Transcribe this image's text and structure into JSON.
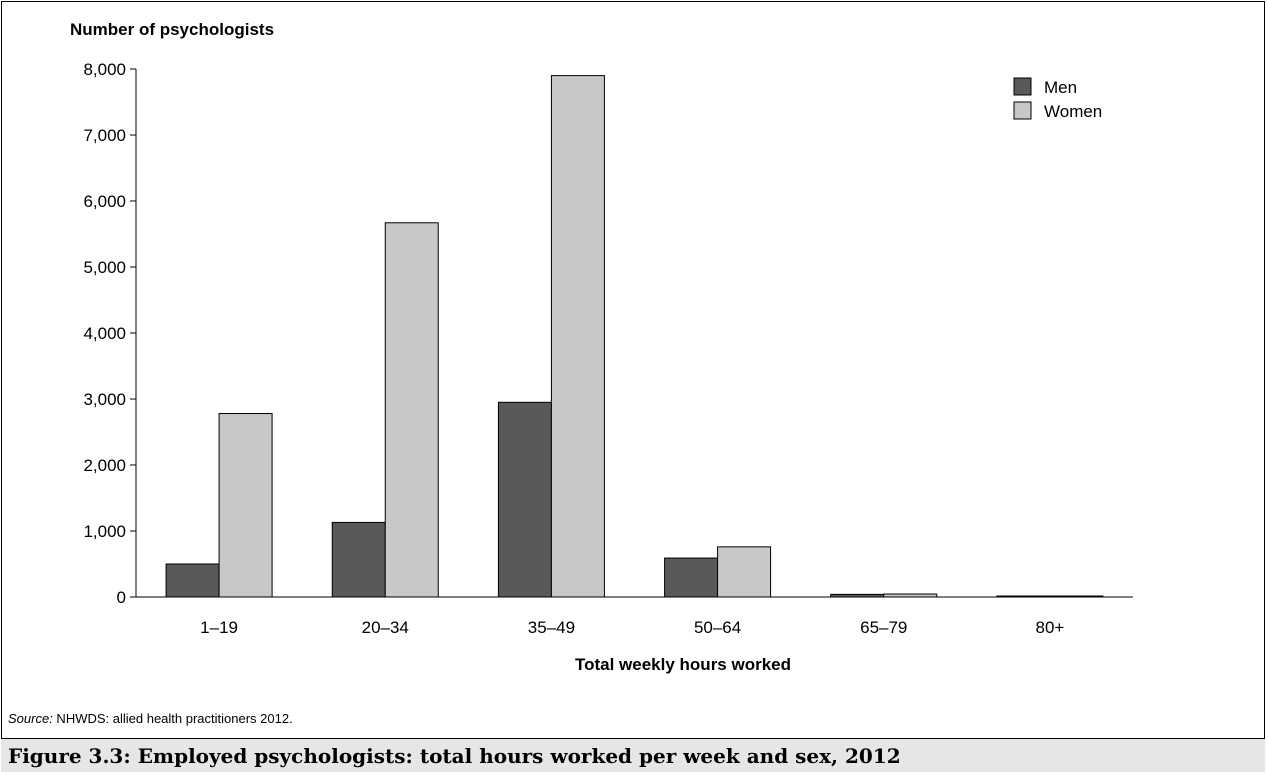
{
  "chart_data": {
    "type": "bar",
    "ylabel": "Number of psychologists",
    "xlabel": "Total weekly hours worked",
    "categories": [
      "1–19",
      "20–34",
      "35–49",
      "50–64",
      "65–79",
      "80+"
    ],
    "series": [
      {
        "name": "Men",
        "color": "#595959",
        "values": [
          500,
          1130,
          2950,
          590,
          40,
          15
        ]
      },
      {
        "name": "Women",
        "color": "#c8c8c8",
        "values": [
          2780,
          5670,
          7900,
          760,
          45,
          15
        ]
      }
    ],
    "ylim": [
      0,
      8000
    ],
    "yticks": [
      0,
      1000,
      2000,
      3000,
      4000,
      5000,
      6000,
      7000,
      8000
    ],
    "ytick_labels": [
      "0",
      "1,000",
      "2,000",
      "3,000",
      "4,000",
      "5,000",
      "6,000",
      "7,000",
      "8,000"
    ],
    "grid": false,
    "legend_position": "top-right"
  },
  "source": {
    "label": "Source:",
    "text": " NHWDS: allied health practitioners 2012."
  },
  "caption": "Figure 3.3: Employed psychologists: total hours worked per week and sex, 2012"
}
